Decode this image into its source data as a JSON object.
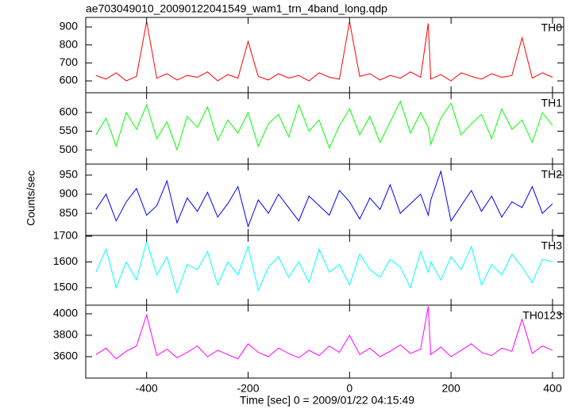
{
  "chart_data": [
    {
      "type": "line",
      "title": "ae703049010_20090122041549_wam1_trn_4band_long.qdp",
      "x": [
        -500,
        -480,
        -460,
        -440,
        -420,
        -400,
        -380,
        -360,
        -340,
        -320,
        -300,
        -280,
        -260,
        -240,
        -220,
        -200,
        -180,
        -160,
        -140,
        -120,
        -100,
        -80,
        -60,
        -40,
        -20,
        0,
        20,
        40,
        60,
        80,
        100,
        120,
        140,
        155,
        160,
        180,
        200,
        220,
        240,
        260,
        280,
        300,
        320,
        340,
        360,
        380,
        400
      ],
      "series": [
        {
          "name": "TH0",
          "color": "#ff0000",
          "values": [
            630,
            610,
            645,
            600,
            625,
            930,
            615,
            640,
            605,
            630,
            620,
            650,
            600,
            635,
            615,
            820,
            625,
            605,
            640,
            615,
            630,
            600,
            645,
            620,
            610,
            930,
            625,
            640,
            605,
            630,
            615,
            650,
            620,
            920,
            610,
            635,
            600,
            645,
            625,
            610,
            640,
            620,
            630,
            840,
            615,
            645,
            620
          ]
        }
      ],
      "xlim": [
        -520,
        422
      ],
      "ylim": [
        534,
        953
      ],
      "yticks": [
        600,
        700,
        800,
        900
      ]
    },
    {
      "type": "line",
      "x": [
        -500,
        -480,
        -460,
        -440,
        -420,
        -400,
        -380,
        -360,
        -340,
        -320,
        -300,
        -280,
        -260,
        -240,
        -220,
        -200,
        -180,
        -160,
        -140,
        -120,
        -100,
        -80,
        -60,
        -40,
        -20,
        0,
        20,
        40,
        60,
        80,
        100,
        120,
        140,
        155,
        160,
        180,
        200,
        220,
        240,
        260,
        280,
        300,
        320,
        340,
        360,
        380,
        400
      ],
      "series": [
        {
          "name": "TH1",
          "color": "#00ff00",
          "values": [
            540,
            585,
            510,
            600,
            555,
            620,
            530,
            575,
            500,
            590,
            560,
            615,
            525,
            580,
            545,
            600,
            510,
            570,
            595,
            535,
            620,
            550,
            580,
            505,
            565,
            610,
            540,
            590,
            520,
            575,
            630,
            545,
            600,
            560,
            515,
            585,
            625,
            540,
            570,
            595,
            530,
            610,
            555,
            580,
            520,
            600,
            565
          ]
        }
      ],
      "xlim": [
        -520,
        422
      ],
      "ylim": [
        462,
        653
      ],
      "yticks": [
        500,
        550,
        600
      ]
    },
    {
      "type": "line",
      "ylabel": "Counts/sec",
      "x": [
        -500,
        -480,
        -460,
        -440,
        -420,
        -400,
        -380,
        -360,
        -340,
        -320,
        -300,
        -280,
        -260,
        -240,
        -220,
        -200,
        -180,
        -160,
        -140,
        -120,
        -100,
        -80,
        -60,
        -40,
        -20,
        0,
        20,
        40,
        60,
        80,
        100,
        120,
        140,
        155,
        160,
        180,
        200,
        220,
        240,
        260,
        280,
        300,
        320,
        340,
        360,
        380,
        400
      ],
      "series": [
        {
          "name": "TH2",
          "color": "#0000ff",
          "values": [
            860,
            900,
            830,
            880,
            915,
            845,
            870,
            935,
            825,
            890,
            855,
            905,
            840,
            875,
            920,
            815,
            885,
            850,
            900,
            865,
            830,
            895,
            870,
            845,
            910,
            880,
            835,
            890,
            860,
            925,
            850,
            875,
            900,
            845,
            885,
            960,
            830,
            870,
            910,
            855,
            895,
            840,
            880,
            865,
            920,
            850,
            875
          ]
        }
      ],
      "xlim": [
        -520,
        422
      ],
      "ylim": [
        792,
        979
      ],
      "yticks": [
        850,
        900,
        950
      ]
    },
    {
      "type": "line",
      "x": [
        -500,
        -480,
        -460,
        -440,
        -420,
        -400,
        -380,
        -360,
        -340,
        -320,
        -300,
        -280,
        -260,
        -240,
        -220,
        -200,
        -180,
        -160,
        -140,
        -120,
        -100,
        -80,
        -60,
        -40,
        -20,
        0,
        20,
        40,
        60,
        80,
        100,
        120,
        140,
        155,
        160,
        180,
        200,
        220,
        240,
        260,
        280,
        300,
        320,
        340,
        360,
        380,
        400
      ],
      "series": [
        {
          "name": "TH3",
          "color": "#00ffff",
          "values": [
            1560,
            1650,
            1500,
            1600,
            1530,
            1680,
            1550,
            1620,
            1480,
            1590,
            1570,
            1640,
            1510,
            1600,
            1550,
            1660,
            1490,
            1580,
            1620,
            1540,
            1600,
            1520,
            1650,
            1560,
            1590,
            1510,
            1630,
            1570,
            1540,
            1610,
            1580,
            1500,
            1640,
            1560,
            1600,
            1530,
            1620,
            1570,
            1660,
            1510,
            1590,
            1550,
            1630,
            1580,
            1520,
            1610,
            1600
          ]
        }
      ],
      "xlim": [
        -520,
        422
      ],
      "ylim": [
        1432,
        1703
      ],
      "yticks": [
        1500,
        1600,
        1700
      ]
    },
    {
      "type": "line",
      "xlabel": "Time [sec] 0 = 2009/01/22 04:15:49",
      "x": [
        -500,
        -480,
        -460,
        -440,
        -420,
        -400,
        -380,
        -360,
        -340,
        -320,
        -300,
        -280,
        -260,
        -240,
        -220,
        -200,
        -180,
        -160,
        -140,
        -120,
        -100,
        -80,
        -60,
        -40,
        -20,
        0,
        20,
        40,
        60,
        80,
        100,
        120,
        140,
        155,
        160,
        180,
        200,
        220,
        240,
        260,
        280,
        300,
        320,
        340,
        360,
        380,
        400
      ],
      "series": [
        {
          "name": "TH0123",
          "color": "#ff00ff",
          "values": [
            3620,
            3680,
            3580,
            3650,
            3700,
            3990,
            3610,
            3670,
            3590,
            3640,
            3700,
            3600,
            3660,
            3620,
            3580,
            3720,
            3640,
            3600,
            3680,
            3630,
            3590,
            3660,
            3610,
            3700,
            3640,
            3800,
            3620,
            3680,
            3600,
            3650,
            3710,
            3630,
            3670,
            4070,
            3620,
            3690,
            3600,
            3660,
            3720,
            3640,
            3610,
            3680,
            3650,
            3950,
            3630,
            3700,
            3660
          ]
        }
      ],
      "xlim": [
        -520,
        422
      ],
      "ylim": [
        3400,
        4081
      ],
      "yticks": [
        3600,
        3800,
        4000
      ],
      "xticks": [
        -400,
        -200,
        0,
        200,
        400
      ]
    }
  ]
}
